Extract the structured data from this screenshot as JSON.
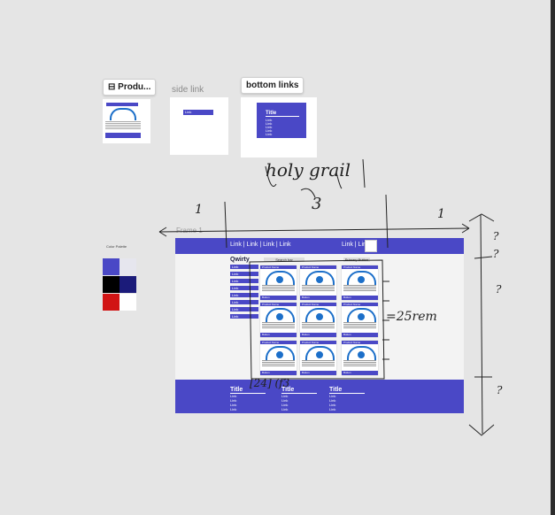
{
  "components": {
    "product_tag": "⊟ Produ...",
    "side_link_tag": "side link",
    "bottom_links_tag": "bottom links",
    "side_link_item": "Link",
    "bottom_links_title": "Title",
    "bottom_links_items": [
      "Link",
      "Link",
      "Link",
      "Link",
      "Link"
    ],
    "product_card_header": "Product Name"
  },
  "frame": {
    "label": "Frame 1",
    "header_links": "Link | Link | Link | Link",
    "header_links_right": "Link | Link",
    "brand": "Qwirty",
    "search": "Search bar",
    "primary_button": "Primary Button",
    "side_links": [
      "Link",
      "Link",
      "Link",
      "Link",
      "Link",
      "Link",
      "Link",
      "Link"
    ],
    "product_header": "Product Name",
    "product_footer": "Button",
    "footer_columns": [
      {
        "title": "Title",
        "links": [
          "Link",
          "Link",
          "Link",
          "Link"
        ]
      },
      {
        "title": "Title",
        "links": [
          "Link",
          "Link",
          "Link",
          "Link"
        ]
      },
      {
        "title": "Title",
        "links": [
          "Link",
          "Link",
          "Link",
          "Link"
        ]
      }
    ]
  },
  "palette": {
    "label": "Color Palette",
    "colors": [
      "#4a48c6",
      "#e6e6ee",
      "#000000",
      "#1b1b7a",
      "#d11414",
      "#ffffff"
    ]
  },
  "annotations": {
    "holy_grail": "holy grail",
    "one_left": "1",
    "three": "3",
    "one_right": "1",
    "rem": "=25rem",
    "grid": "[24] (f3",
    "q1": "?",
    "q2": "?",
    "q3": "?",
    "q4": "?"
  }
}
